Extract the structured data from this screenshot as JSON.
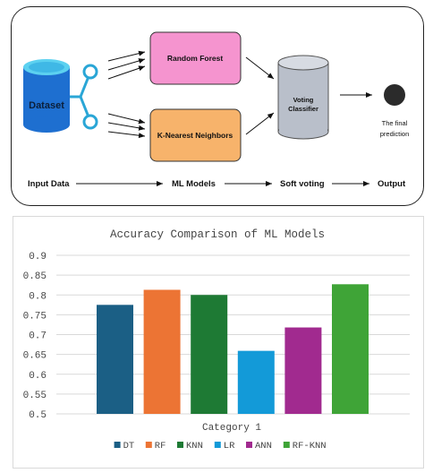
{
  "diagram": {
    "dataset_label": "Dataset",
    "model_rf_label": "Random Forest",
    "model_knn_label": "K-Nearest Neighbors",
    "voting_label_line1": "Voting",
    "voting_label_line2": "Classifier",
    "output_label_line1": "The final",
    "output_label_line2": "prediction",
    "stages": [
      "Input Data",
      "ML Models",
      "Soft voting",
      "Output"
    ],
    "colors": {
      "dataset": "#1e6fd0",
      "dataset_top": "#5cd1f0",
      "connector": "#2aa6d6",
      "rf_box": "#f594cf",
      "knn_box": "#f7b36b",
      "voting": "#b9bfca",
      "output_dot": "#2b2b2b"
    }
  },
  "chart_data": {
    "type": "bar",
    "title": "Accuracy Comparison of ML Models",
    "categories": [
      "Category 1"
    ],
    "xlabel": "Category 1",
    "ylabel": "",
    "ylim": [
      0.5,
      0.9
    ],
    "yticks": [
      "0.5",
      "0.55",
      "0.6",
      "0.65",
      "0.7",
      "0.75",
      "0.8",
      "0.85",
      "0.9"
    ],
    "grid": true,
    "legend_position": "bottom",
    "series": [
      {
        "name": "DT",
        "values": [
          0.775
        ],
        "color": "#1b5f85"
      },
      {
        "name": "RF",
        "values": [
          0.813
        ],
        "color": "#ec7434"
      },
      {
        "name": "KNN",
        "values": [
          0.8
        ],
        "color": "#1e7a34"
      },
      {
        "name": "LR",
        "values": [
          0.659
        ],
        "color": "#139ad8"
      },
      {
        "name": "ANN",
        "values": [
          0.718
        ],
        "color": "#a12a8f"
      },
      {
        "name": "RF-KNN",
        "values": [
          0.827
        ],
        "color": "#3fa437"
      }
    ]
  }
}
